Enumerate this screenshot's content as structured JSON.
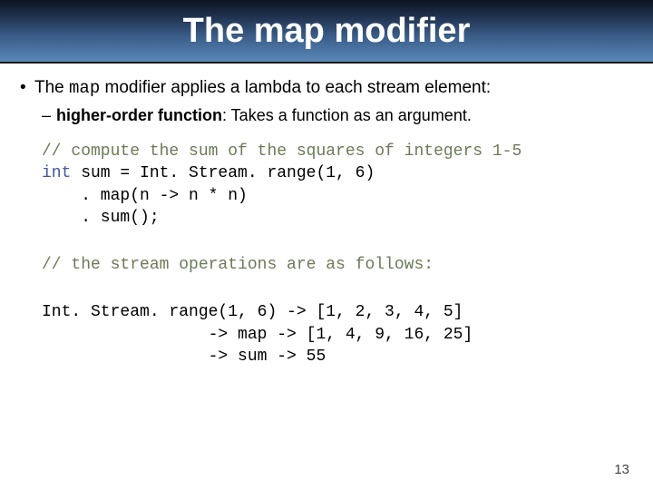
{
  "title": "The map modifier",
  "bullet": {
    "prefix": "The ",
    "mono": "map",
    "suffix": " modifier applies a lambda to each stream element:"
  },
  "sub": {
    "bold": "higher-order function",
    "rest": ": Takes a function as an argument."
  },
  "code1": {
    "comment": "// compute the sum of the squares of integers 1-5",
    "line2a": "int",
    "line2b": " sum = Int. Stream. range(1, 6)",
    "line3": "    . map(n -> n * n)",
    "line4": "    . sum();"
  },
  "code2": {
    "comment": "// the stream operations are as follows:"
  },
  "code3": {
    "l1": "Int. Stream. range(1, 6) -> [1, 2, 3, 4, 5]",
    "l2": "                 -> map -> [1, 4, 9, 16, 25]",
    "l3": "                 -> sum -> 55"
  },
  "pageNumber": "13",
  "colors": {
    "comment_color": "#6b7a55",
    "keyword_color": "#3a5a9a",
    "title_gradient_top": "#0d1420",
    "title_gradient_bottom": "#5a88b8"
  },
  "fonts": {
    "title_size_pt": 38,
    "body_size_pt": 19,
    "sub_size_pt": 18,
    "code_size_pt": 18,
    "mono_family": "Courier New",
    "sans_family": "Verdana"
  }
}
